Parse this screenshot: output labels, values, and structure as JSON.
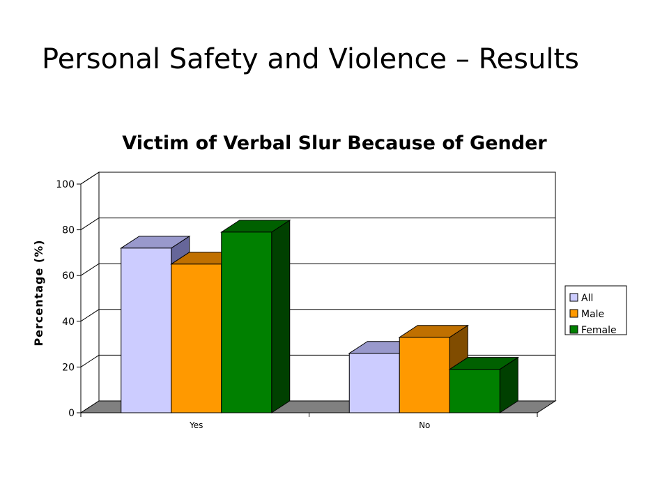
{
  "slide": {
    "title": "Personal Safety and Violence – Results"
  },
  "chart_data": {
    "type": "bar",
    "title": "Victim of Verbal Slur Because of Gender",
    "xlabel": "",
    "ylabel": "Percentage (%)",
    "ylim": [
      0,
      100
    ],
    "yticks": [
      0,
      20,
      40,
      60,
      80,
      100
    ],
    "grid": true,
    "legend_position": "right",
    "categories": [
      "Yes",
      "No"
    ],
    "series": [
      {
        "name": "All",
        "values": [
          72,
          26
        ],
        "color": "#ccccff",
        "top_color": "#9999cc",
        "side_color": "#666699"
      },
      {
        "name": "Male",
        "values": [
          65,
          33
        ],
        "color": "#ff9900",
        "top_color": "#c07000",
        "side_color": "#804c00"
      },
      {
        "name": "Female",
        "values": [
          79,
          19
        ],
        "color": "#008000",
        "top_color": "#006000",
        "side_color": "#004000"
      }
    ]
  }
}
